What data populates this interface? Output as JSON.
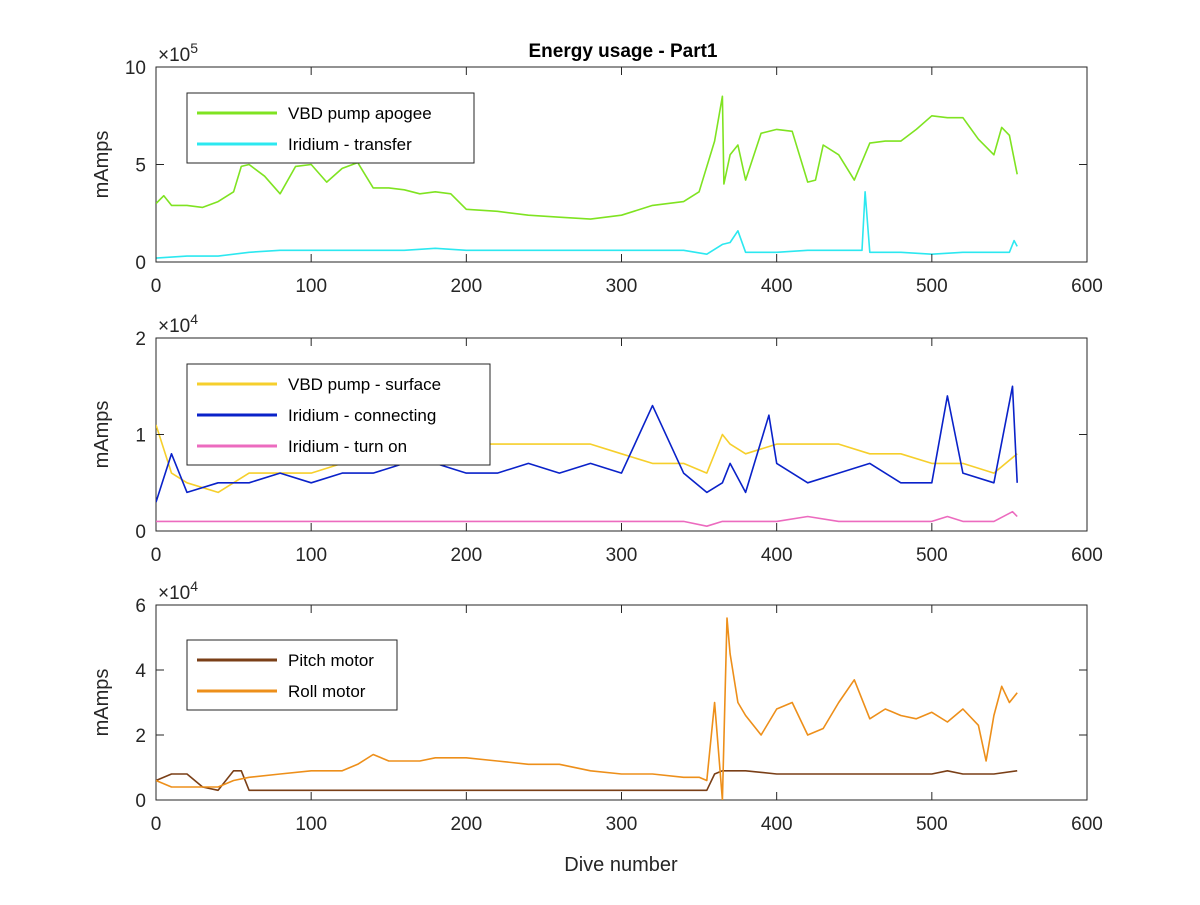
{
  "figure": {
    "title": "Energy usage - Part1",
    "xlabel": "Dive number"
  },
  "chart_data": [
    {
      "type": "line",
      "title": "Energy usage - Part1",
      "xlabel": "",
      "ylabel": "mAmps",
      "y_exponent_label": "×10",
      "y_exponent": "5",
      "xlim": [
        0,
        600
      ],
      "ylim": [
        0,
        10
      ],
      "x_ticks": [
        0,
        100,
        200,
        300,
        400,
        500,
        600
      ],
      "y_ticks": [
        0,
        5,
        10
      ],
      "grid": false,
      "legend_placement": "top-left",
      "series": [
        {
          "name": "VBD pump apogee",
          "color": "#7fe321",
          "x": [
            0,
            5,
            10,
            20,
            30,
            40,
            50,
            55,
            60,
            70,
            80,
            90,
            100,
            110,
            120,
            130,
            140,
            150,
            160,
            170,
            180,
            190,
            200,
            220,
            240,
            260,
            280,
            300,
            320,
            340,
            350,
            360,
            365,
            366,
            370,
            375,
            380,
            390,
            400,
            410,
            420,
            425,
            430,
            440,
            450,
            460,
            470,
            480,
            490,
            500,
            510,
            520,
            530,
            540,
            545,
            550,
            555
          ],
          "values": [
            3.0,
            3.4,
            2.9,
            2.9,
            2.8,
            3.1,
            3.6,
            4.9,
            5.0,
            4.4,
            3.5,
            4.9,
            5.0,
            4.1,
            4.8,
            5.1,
            3.8,
            3.8,
            3.7,
            3.5,
            3.6,
            3.5,
            2.7,
            2.6,
            2.4,
            2.3,
            2.2,
            2.4,
            2.9,
            3.1,
            3.6,
            6.2,
            8.5,
            4.0,
            5.5,
            6.0,
            4.2,
            6.6,
            6.8,
            6.7,
            4.1,
            4.2,
            6.0,
            5.5,
            4.2,
            6.1,
            6.2,
            6.2,
            6.8,
            7.5,
            7.4,
            7.4,
            6.3,
            5.5,
            6.9,
            6.5,
            4.5
          ]
        },
        {
          "name": "Iridium - transfer",
          "color": "#2ce8f0",
          "x": [
            0,
            20,
            40,
            60,
            80,
            100,
            120,
            140,
            160,
            180,
            200,
            220,
            240,
            260,
            280,
            300,
            320,
            340,
            355,
            365,
            370,
            375,
            380,
            400,
            420,
            440,
            455,
            457,
            460,
            480,
            500,
            520,
            540,
            550,
            553,
            555
          ],
          "values": [
            0.2,
            0.3,
            0.3,
            0.5,
            0.6,
            0.6,
            0.6,
            0.6,
            0.6,
            0.7,
            0.6,
            0.6,
            0.6,
            0.6,
            0.6,
            0.6,
            0.6,
            0.6,
            0.4,
            0.9,
            1.0,
            1.6,
            0.5,
            0.5,
            0.6,
            0.6,
            0.6,
            3.6,
            0.5,
            0.5,
            0.4,
            0.5,
            0.5,
            0.5,
            1.1,
            0.8
          ]
        }
      ]
    },
    {
      "type": "line",
      "xlabel": "",
      "ylabel": "mAmps",
      "y_exponent_label": "×10",
      "y_exponent": "4",
      "xlim": [
        0,
        600
      ],
      "ylim": [
        0,
        2
      ],
      "x_ticks": [
        0,
        100,
        200,
        300,
        400,
        500,
        600
      ],
      "y_ticks": [
        0,
        1,
        2
      ],
      "grid": false,
      "legend_placement": "top-left",
      "series": [
        {
          "name": "VBD pump - surface",
          "color": "#f6cf2c",
          "x": [
            0,
            10,
            20,
            40,
            60,
            80,
            100,
            120,
            140,
            160,
            180,
            200,
            220,
            240,
            260,
            280,
            300,
            320,
            340,
            355,
            365,
            370,
            380,
            400,
            420,
            440,
            460,
            480,
            500,
            520,
            540,
            555
          ],
          "values": [
            1.1,
            0.6,
            0.5,
            0.4,
            0.6,
            0.6,
            0.6,
            0.7,
            0.7,
            0.8,
            0.8,
            0.9,
            0.9,
            0.9,
            0.9,
            0.9,
            0.8,
            0.7,
            0.7,
            0.6,
            1.0,
            0.9,
            0.8,
            0.9,
            0.9,
            0.9,
            0.8,
            0.8,
            0.7,
            0.7,
            0.6,
            0.8
          ]
        },
        {
          "name": "Iridium - connecting",
          "color": "#0a22c9",
          "x": [
            0,
            10,
            20,
            40,
            60,
            80,
            100,
            120,
            140,
            160,
            180,
            200,
            220,
            240,
            260,
            280,
            300,
            320,
            340,
            355,
            365,
            370,
            380,
            395,
            400,
            420,
            440,
            460,
            480,
            500,
            510,
            520,
            540,
            552,
            555
          ],
          "values": [
            0.3,
            0.8,
            0.4,
            0.5,
            0.5,
            0.6,
            0.5,
            0.6,
            0.6,
            0.7,
            0.7,
            0.6,
            0.6,
            0.7,
            0.6,
            0.7,
            0.6,
            1.3,
            0.6,
            0.4,
            0.5,
            0.7,
            0.4,
            1.2,
            0.7,
            0.5,
            0.6,
            0.7,
            0.5,
            0.5,
            1.4,
            0.6,
            0.5,
            1.5,
            0.5
          ]
        },
        {
          "name": "Iridium - turn on",
          "color": "#ec6bbf",
          "x": [
            0,
            20,
            40,
            60,
            80,
            100,
            120,
            140,
            160,
            180,
            200,
            220,
            240,
            260,
            280,
            300,
            320,
            340,
            355,
            365,
            380,
            400,
            420,
            440,
            460,
            480,
            500,
            510,
            520,
            540,
            552,
            555
          ],
          "values": [
            0.1,
            0.1,
            0.1,
            0.1,
            0.1,
            0.1,
            0.1,
            0.1,
            0.1,
            0.1,
            0.1,
            0.1,
            0.1,
            0.1,
            0.1,
            0.1,
            0.1,
            0.1,
            0.05,
            0.1,
            0.1,
            0.1,
            0.15,
            0.1,
            0.1,
            0.1,
            0.1,
            0.15,
            0.1,
            0.1,
            0.2,
            0.15
          ]
        }
      ]
    },
    {
      "type": "line",
      "xlabel": "Dive number",
      "ylabel": "mAmps",
      "y_exponent_label": "×10",
      "y_exponent": "4",
      "xlim": [
        0,
        600
      ],
      "ylim": [
        0,
        6
      ],
      "x_ticks": [
        0,
        100,
        200,
        300,
        400,
        500,
        600
      ],
      "y_ticks": [
        0,
        2,
        4,
        6
      ],
      "grid": false,
      "legend_placement": "top-left",
      "series": [
        {
          "name": "Pitch motor",
          "color": "#7a3f17",
          "x": [
            0,
            10,
            20,
            30,
            40,
            50,
            55,
            60,
            70,
            100,
            150,
            200,
            250,
            300,
            350,
            355,
            360,
            365,
            370,
            380,
            400,
            450,
            500,
            510,
            520,
            540,
            555
          ],
          "values": [
            0.6,
            0.8,
            0.8,
            0.4,
            0.3,
            0.9,
            0.9,
            0.3,
            0.3,
            0.3,
            0.3,
            0.3,
            0.3,
            0.3,
            0.3,
            0.3,
            0.8,
            0.9,
            0.9,
            0.9,
            0.8,
            0.8,
            0.8,
            0.9,
            0.8,
            0.8,
            0.9
          ]
        },
        {
          "name": "Roll motor",
          "color": "#ed8f1a",
          "x": [
            0,
            10,
            20,
            30,
            40,
            50,
            60,
            80,
            100,
            120,
            130,
            140,
            150,
            170,
            180,
            200,
            220,
            240,
            260,
            280,
            300,
            320,
            340,
            350,
            355,
            360,
            365,
            368,
            370,
            375,
            380,
            390,
            400,
            410,
            420,
            430,
            440,
            450,
            460,
            470,
            480,
            490,
            500,
            510,
            520,
            530,
            535,
            540,
            545,
            550,
            555
          ],
          "values": [
            0.6,
            0.4,
            0.4,
            0.4,
            0.4,
            0.6,
            0.7,
            0.8,
            0.9,
            0.9,
            1.1,
            1.4,
            1.2,
            1.2,
            1.3,
            1.3,
            1.2,
            1.1,
            1.1,
            0.9,
            0.8,
            0.8,
            0.7,
            0.7,
            0.6,
            3.0,
            0.0,
            5.6,
            4.5,
            3.0,
            2.6,
            2.0,
            2.8,
            3.0,
            2.0,
            2.2,
            3.0,
            3.7,
            2.5,
            2.8,
            2.6,
            2.5,
            2.7,
            2.4,
            2.8,
            2.3,
            1.2,
            2.6,
            3.5,
            3.0,
            3.3
          ]
        }
      ]
    }
  ]
}
